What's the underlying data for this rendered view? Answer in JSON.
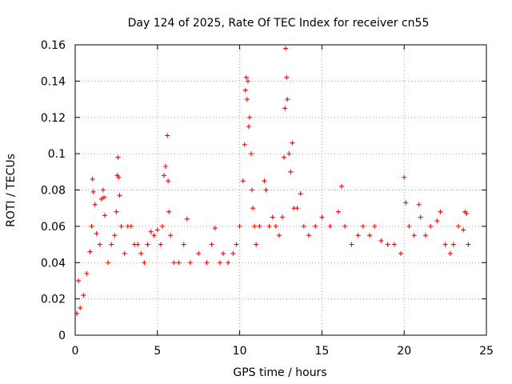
{
  "chart_data": {
    "type": "scatter",
    "title": "Day 124 of 2025, Rate Of TEC Index for receiver cn55",
    "xlabel": "GPS time / hours",
    "ylabel": "ROTI / TECUs",
    "xlim": [
      0,
      25
    ],
    "ylim": [
      0,
      0.16
    ],
    "xticks": [
      0,
      5,
      10,
      15,
      20,
      25
    ],
    "xtick_labels": [
      "0",
      "5",
      "10",
      "15",
      "20",
      "25"
    ],
    "yticks": [
      0,
      0.02,
      0.04,
      0.06,
      0.08,
      0.1,
      0.12,
      0.14,
      0.16
    ],
    "ytick_labels": [
      "0",
      "0.02",
      "0.04",
      "0.06",
      "0.08",
      "0.1",
      "0.12",
      "0.14",
      "0.16"
    ],
    "grid": true,
    "marker": "+",
    "color": "#ff0000",
    "series": [
      {
        "name": "ROTI",
        "points": [
          [
            0.1,
            0.012
          ],
          [
            0.2,
            0.03
          ],
          [
            0.3,
            0.015
          ],
          [
            0.5,
            0.022
          ],
          [
            0.7,
            0.034
          ],
          [
            0.9,
            0.046
          ],
          [
            1.0,
            0.06
          ],
          [
            1.05,
            0.086
          ],
          [
            1.1,
            0.079
          ],
          [
            1.2,
            0.072
          ],
          [
            1.3,
            0.056
          ],
          [
            1.5,
            0.05
          ],
          [
            1.6,
            0.075
          ],
          [
            1.7,
            0.08
          ],
          [
            1.75,
            0.076
          ],
          [
            1.8,
            0.066
          ],
          [
            2.0,
            0.04
          ],
          [
            2.2,
            0.05
          ],
          [
            2.4,
            0.055
          ],
          [
            2.5,
            0.068
          ],
          [
            2.55,
            0.088
          ],
          [
            2.6,
            0.098
          ],
          [
            2.65,
            0.087
          ],
          [
            2.7,
            0.077
          ],
          [
            2.8,
            0.06
          ],
          [
            3.0,
            0.045
          ],
          [
            3.2,
            0.06
          ],
          [
            3.4,
            0.06
          ],
          [
            3.6,
            0.05
          ],
          [
            3.8,
            0.05
          ],
          [
            4.0,
            0.045
          ],
          [
            4.2,
            0.04
          ],
          [
            4.4,
            0.05
          ],
          [
            4.6,
            0.057
          ],
          [
            4.8,
            0.055
          ],
          [
            5.0,
            0.058
          ],
          [
            5.2,
            0.05
          ],
          [
            5.3,
            0.06
          ],
          [
            5.4,
            0.088
          ],
          [
            5.5,
            0.093
          ],
          [
            5.6,
            0.11
          ],
          [
            5.65,
            0.085
          ],
          [
            5.7,
            0.068
          ],
          [
            5.8,
            0.055
          ],
          [
            6.0,
            0.04
          ],
          [
            6.3,
            0.04
          ],
          [
            6.6,
            0.05
          ],
          [
            6.8,
            0.064
          ],
          [
            7.0,
            0.04
          ],
          [
            7.5,
            0.045
          ],
          [
            8.0,
            0.04
          ],
          [
            8.3,
            0.05
          ],
          [
            8.5,
            0.059
          ],
          [
            8.8,
            0.04
          ],
          [
            9.0,
            0.045
          ],
          [
            9.3,
            0.04
          ],
          [
            9.6,
            0.045
          ],
          [
            9.8,
            0.05
          ],
          [
            10.0,
            0.06
          ],
          [
            10.2,
            0.085
          ],
          [
            10.3,
            0.105
          ],
          [
            10.35,
            0.135
          ],
          [
            10.4,
            0.142
          ],
          [
            10.45,
            0.13
          ],
          [
            10.5,
            0.14
          ],
          [
            10.55,
            0.115
          ],
          [
            10.6,
            0.12
          ],
          [
            10.7,
            0.1
          ],
          [
            10.75,
            0.08
          ],
          [
            10.8,
            0.07
          ],
          [
            10.9,
            0.06
          ],
          [
            11.0,
            0.05
          ],
          [
            11.2,
            0.06
          ],
          [
            11.5,
            0.085
          ],
          [
            11.6,
            0.08
          ],
          [
            11.8,
            0.06
          ],
          [
            12.0,
            0.065
          ],
          [
            12.2,
            0.06
          ],
          [
            12.4,
            0.055
          ],
          [
            12.6,
            0.065
          ],
          [
            12.7,
            0.098
          ],
          [
            12.75,
            0.125
          ],
          [
            12.8,
            0.158
          ],
          [
            12.85,
            0.142
          ],
          [
            12.9,
            0.13
          ],
          [
            13.0,
            0.1
          ],
          [
            13.1,
            0.09
          ],
          [
            13.2,
            0.106
          ],
          [
            13.3,
            0.07
          ],
          [
            13.5,
            0.07
          ],
          [
            13.7,
            0.078
          ],
          [
            13.9,
            0.06
          ],
          [
            14.2,
            0.055
          ],
          [
            14.6,
            0.06
          ],
          [
            15.0,
            0.065
          ],
          [
            15.5,
            0.06
          ],
          [
            16.0,
            0.068
          ],
          [
            16.2,
            0.082
          ],
          [
            16.4,
            0.06
          ],
          [
            16.8,
            0.05
          ],
          [
            17.2,
            0.055
          ],
          [
            17.5,
            0.06
          ],
          [
            17.9,
            0.055
          ],
          [
            18.2,
            0.06
          ],
          [
            18.6,
            0.052
          ],
          [
            19.0,
            0.05
          ],
          [
            19.4,
            0.05
          ],
          [
            19.8,
            0.045
          ],
          [
            20.0,
            0.087
          ],
          [
            20.1,
            0.073
          ],
          [
            20.3,
            0.06
          ],
          [
            20.6,
            0.055
          ],
          [
            20.9,
            0.072
          ],
          [
            21.0,
            0.065
          ],
          [
            21.3,
            0.055
          ],
          [
            21.6,
            0.06
          ],
          [
            22.0,
            0.063
          ],
          [
            22.2,
            0.068
          ],
          [
            22.5,
            0.05
          ],
          [
            22.8,
            0.045
          ],
          [
            23.0,
            0.05
          ],
          [
            23.3,
            0.06
          ],
          [
            23.6,
            0.058
          ],
          [
            23.7,
            0.068
          ],
          [
            23.8,
            0.067
          ],
          [
            23.9,
            0.05
          ]
        ]
      }
    ]
  }
}
